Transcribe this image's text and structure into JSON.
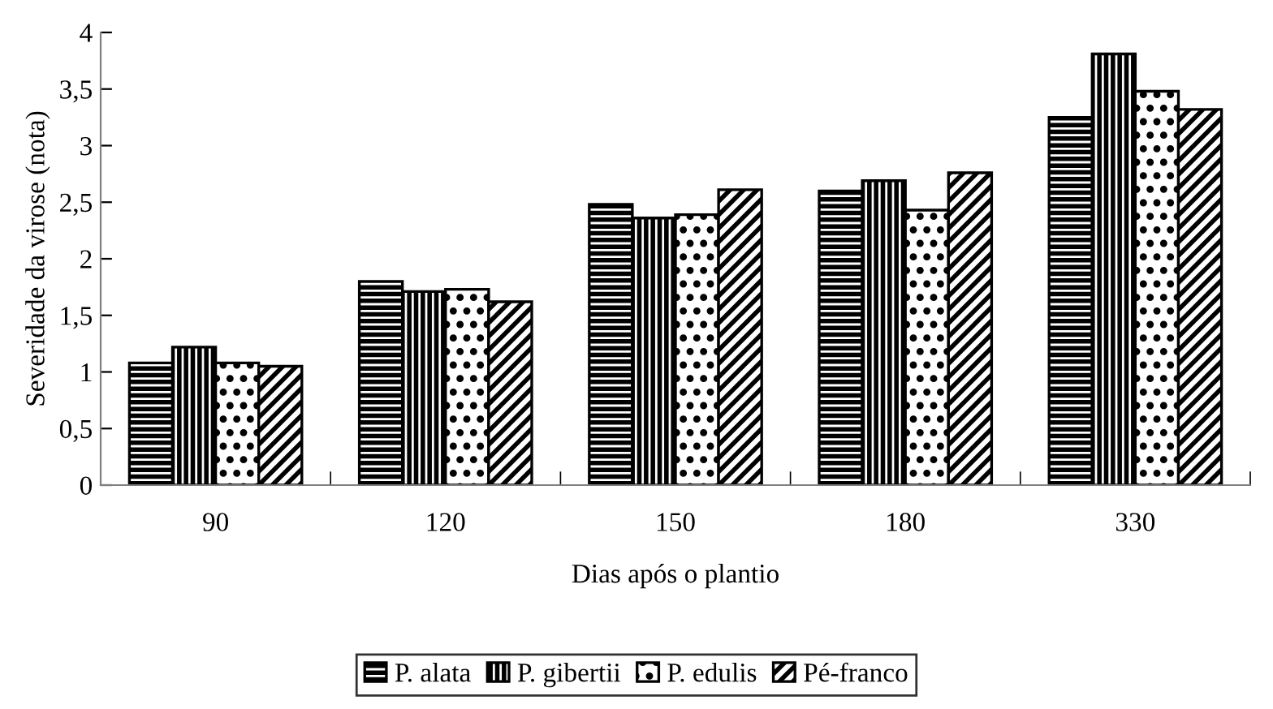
{
  "chart_data": {
    "type": "bar",
    "xlabel": "Dias após o plantio",
    "ylabel": "Severidade da virose (nota)",
    "categories": [
      "90",
      "120",
      "150",
      "180",
      "330"
    ],
    "series": [
      {
        "name": "P. alata",
        "color": "#000000",
        "values": [
          1.08,
          1.8,
          2.48,
          2.6,
          3.25
        ]
      },
      {
        "name": "P. gibertii",
        "color": "#000000",
        "values": [
          1.22,
          1.71,
          2.36,
          2.69,
          3.81
        ]
      },
      {
        "name": "P. edulis",
        "color": "#000000",
        "values": [
          1.08,
          1.73,
          2.39,
          2.43,
          3.48
        ]
      },
      {
        "name": "Pé-franco",
        "color": "#000000",
        "values": [
          1.05,
          1.62,
          2.61,
          2.76,
          3.32
        ]
      }
    ],
    "ylim": [
      0,
      4
    ],
    "yticks": [
      0,
      {
        "value": 0.5,
        "label": "0,5"
      },
      1,
      {
        "value": 1.5,
        "label": "1,5"
      },
      2,
      {
        "value": 2.5,
        "label": "2,5"
      },
      3,
      {
        "value": 3.5,
        "label": "3,5"
      },
      4
    ],
    "grid": false,
    "legend": "bottom"
  }
}
